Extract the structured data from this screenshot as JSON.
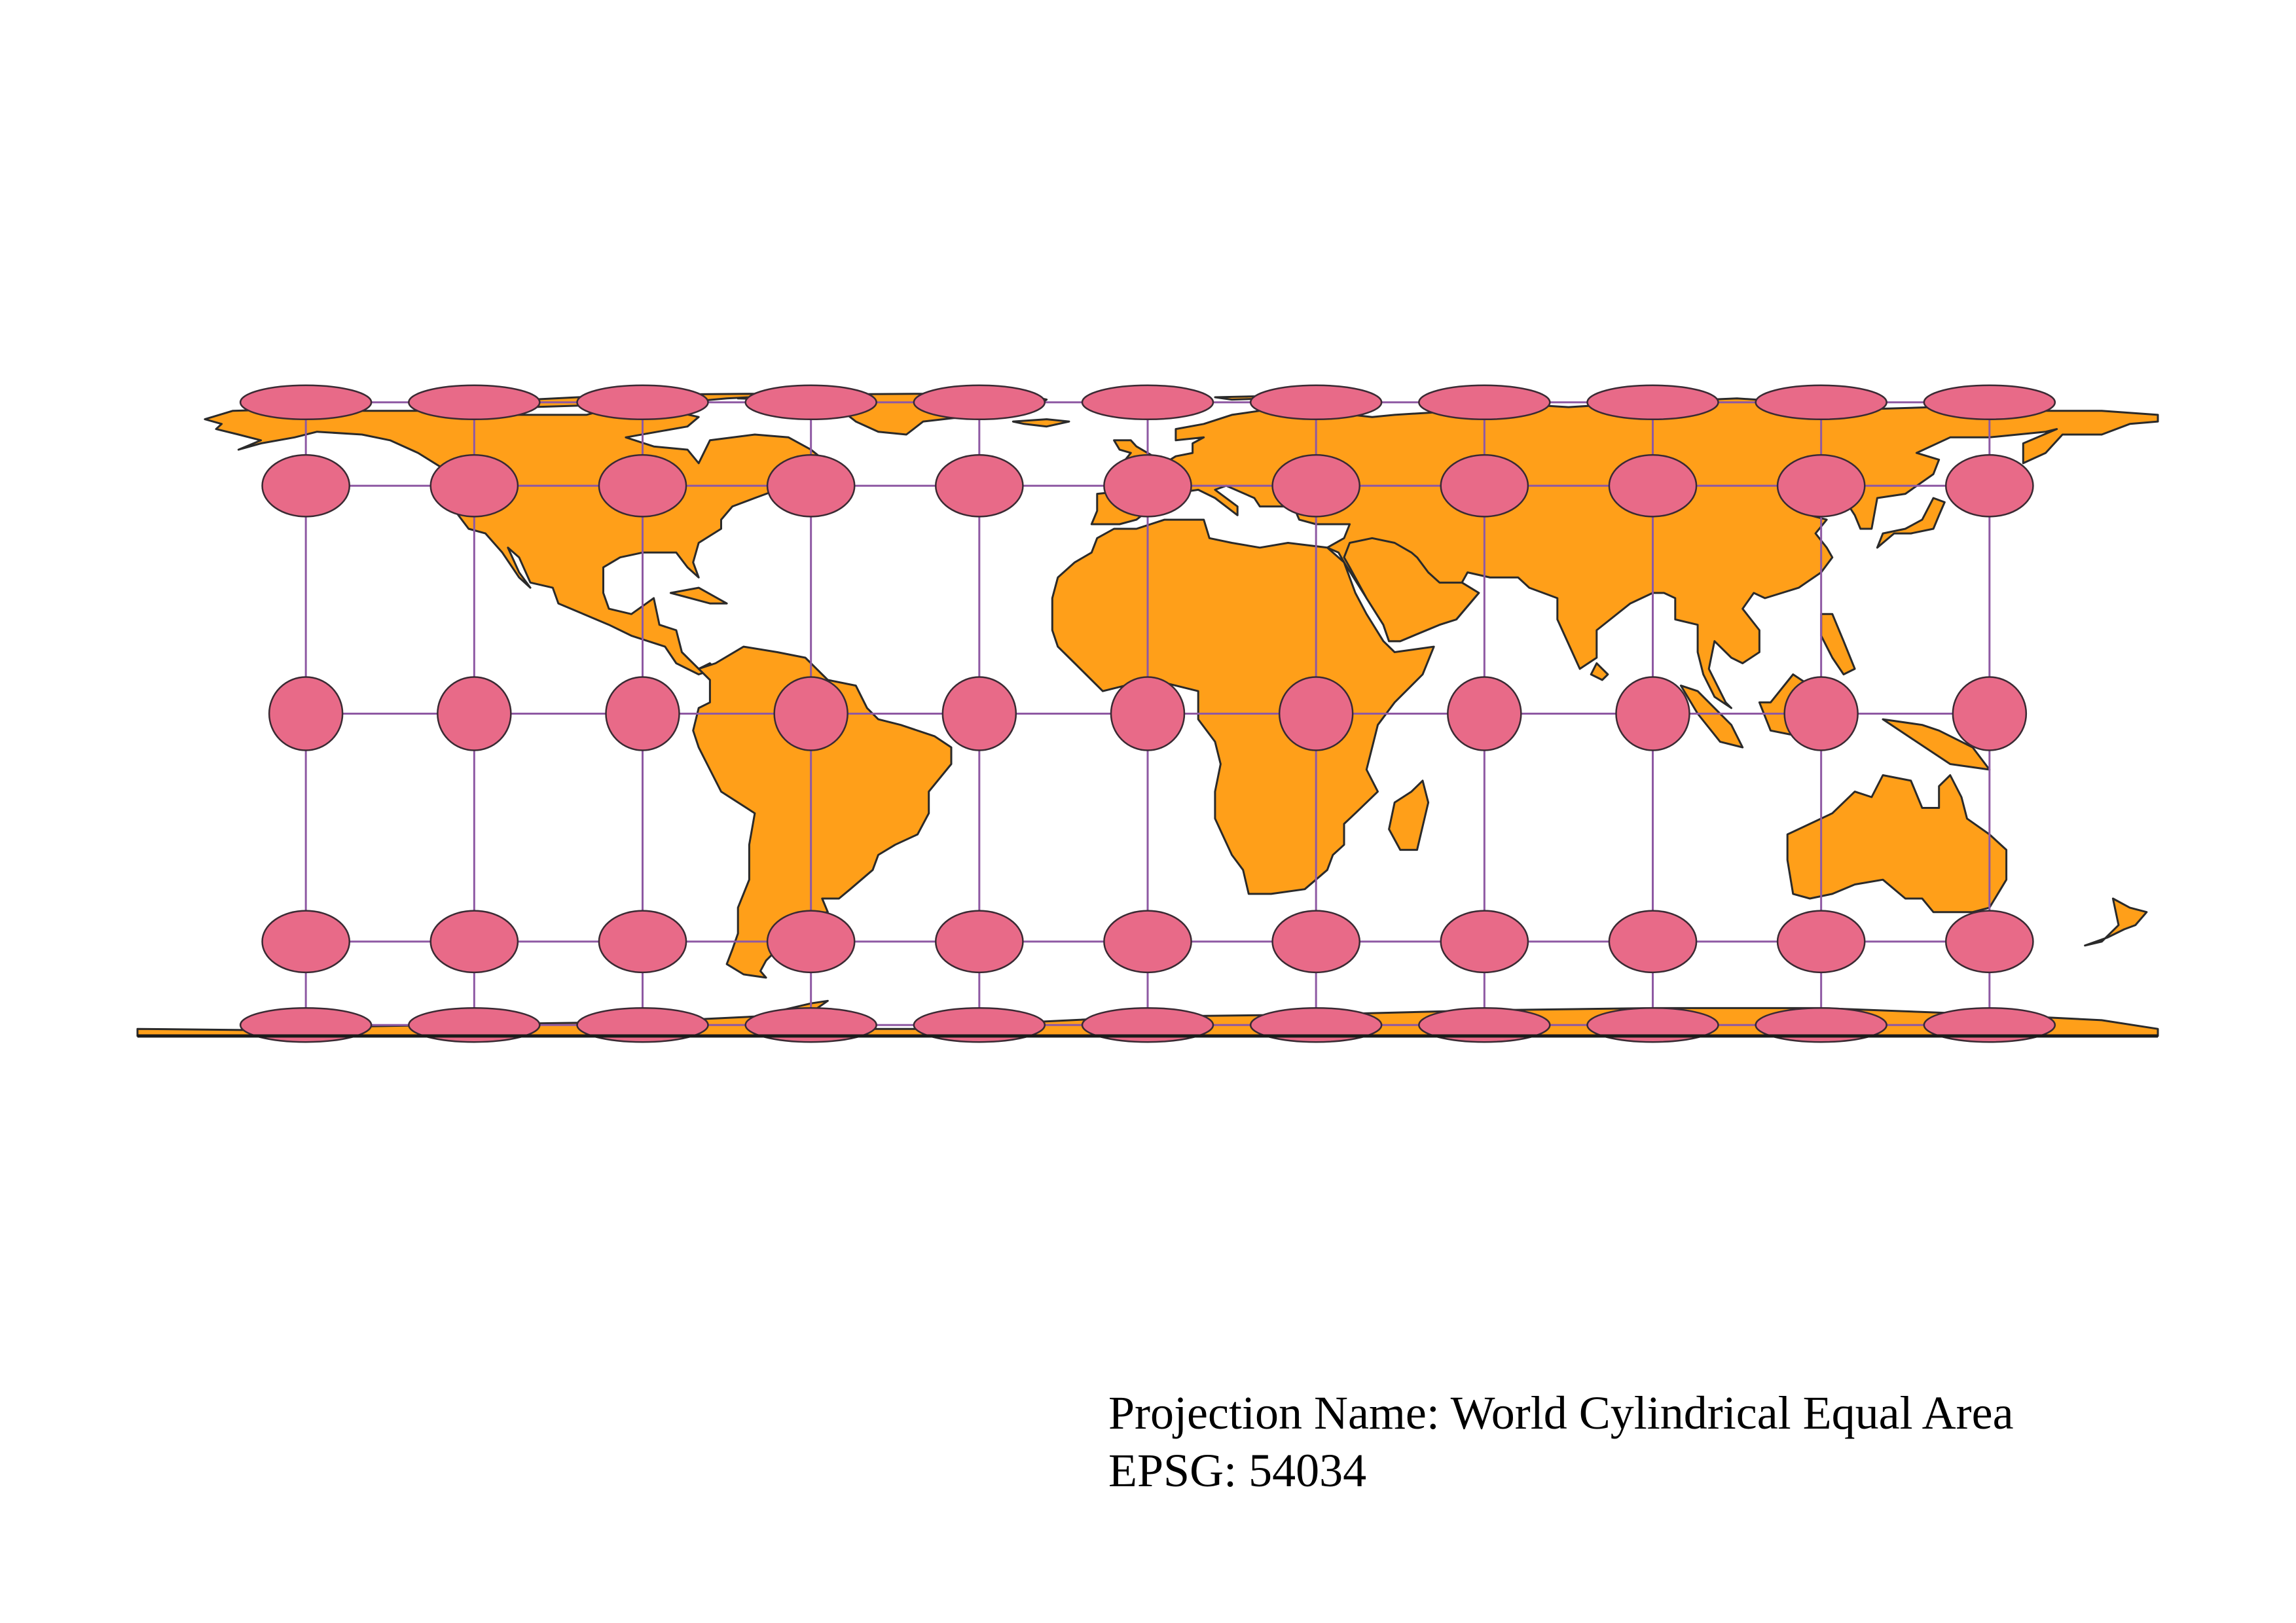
{
  "projection": {
    "name_label": "Projection Name: World Cylindrical Equal Area",
    "epsg_label": "EPSG: 54034"
  },
  "graticule": {
    "longitudes": [
      -150,
      -120,
      -90,
      -60,
      -30,
      0,
      30,
      60,
      90,
      120,
      150
    ],
    "latitudes": [
      75,
      45,
      0,
      -45,
      -75
    ]
  },
  "tissot": {
    "description_hidden": true
  },
  "colors": {
    "land_fill": "#FF9F19",
    "land_stroke": "#2a2a2a",
    "indicatrix_fill": "#E86A88",
    "indicatrix_stroke": "#3a2a33",
    "graticule_stroke": "#8E59A3",
    "background": "#ffffff"
  }
}
